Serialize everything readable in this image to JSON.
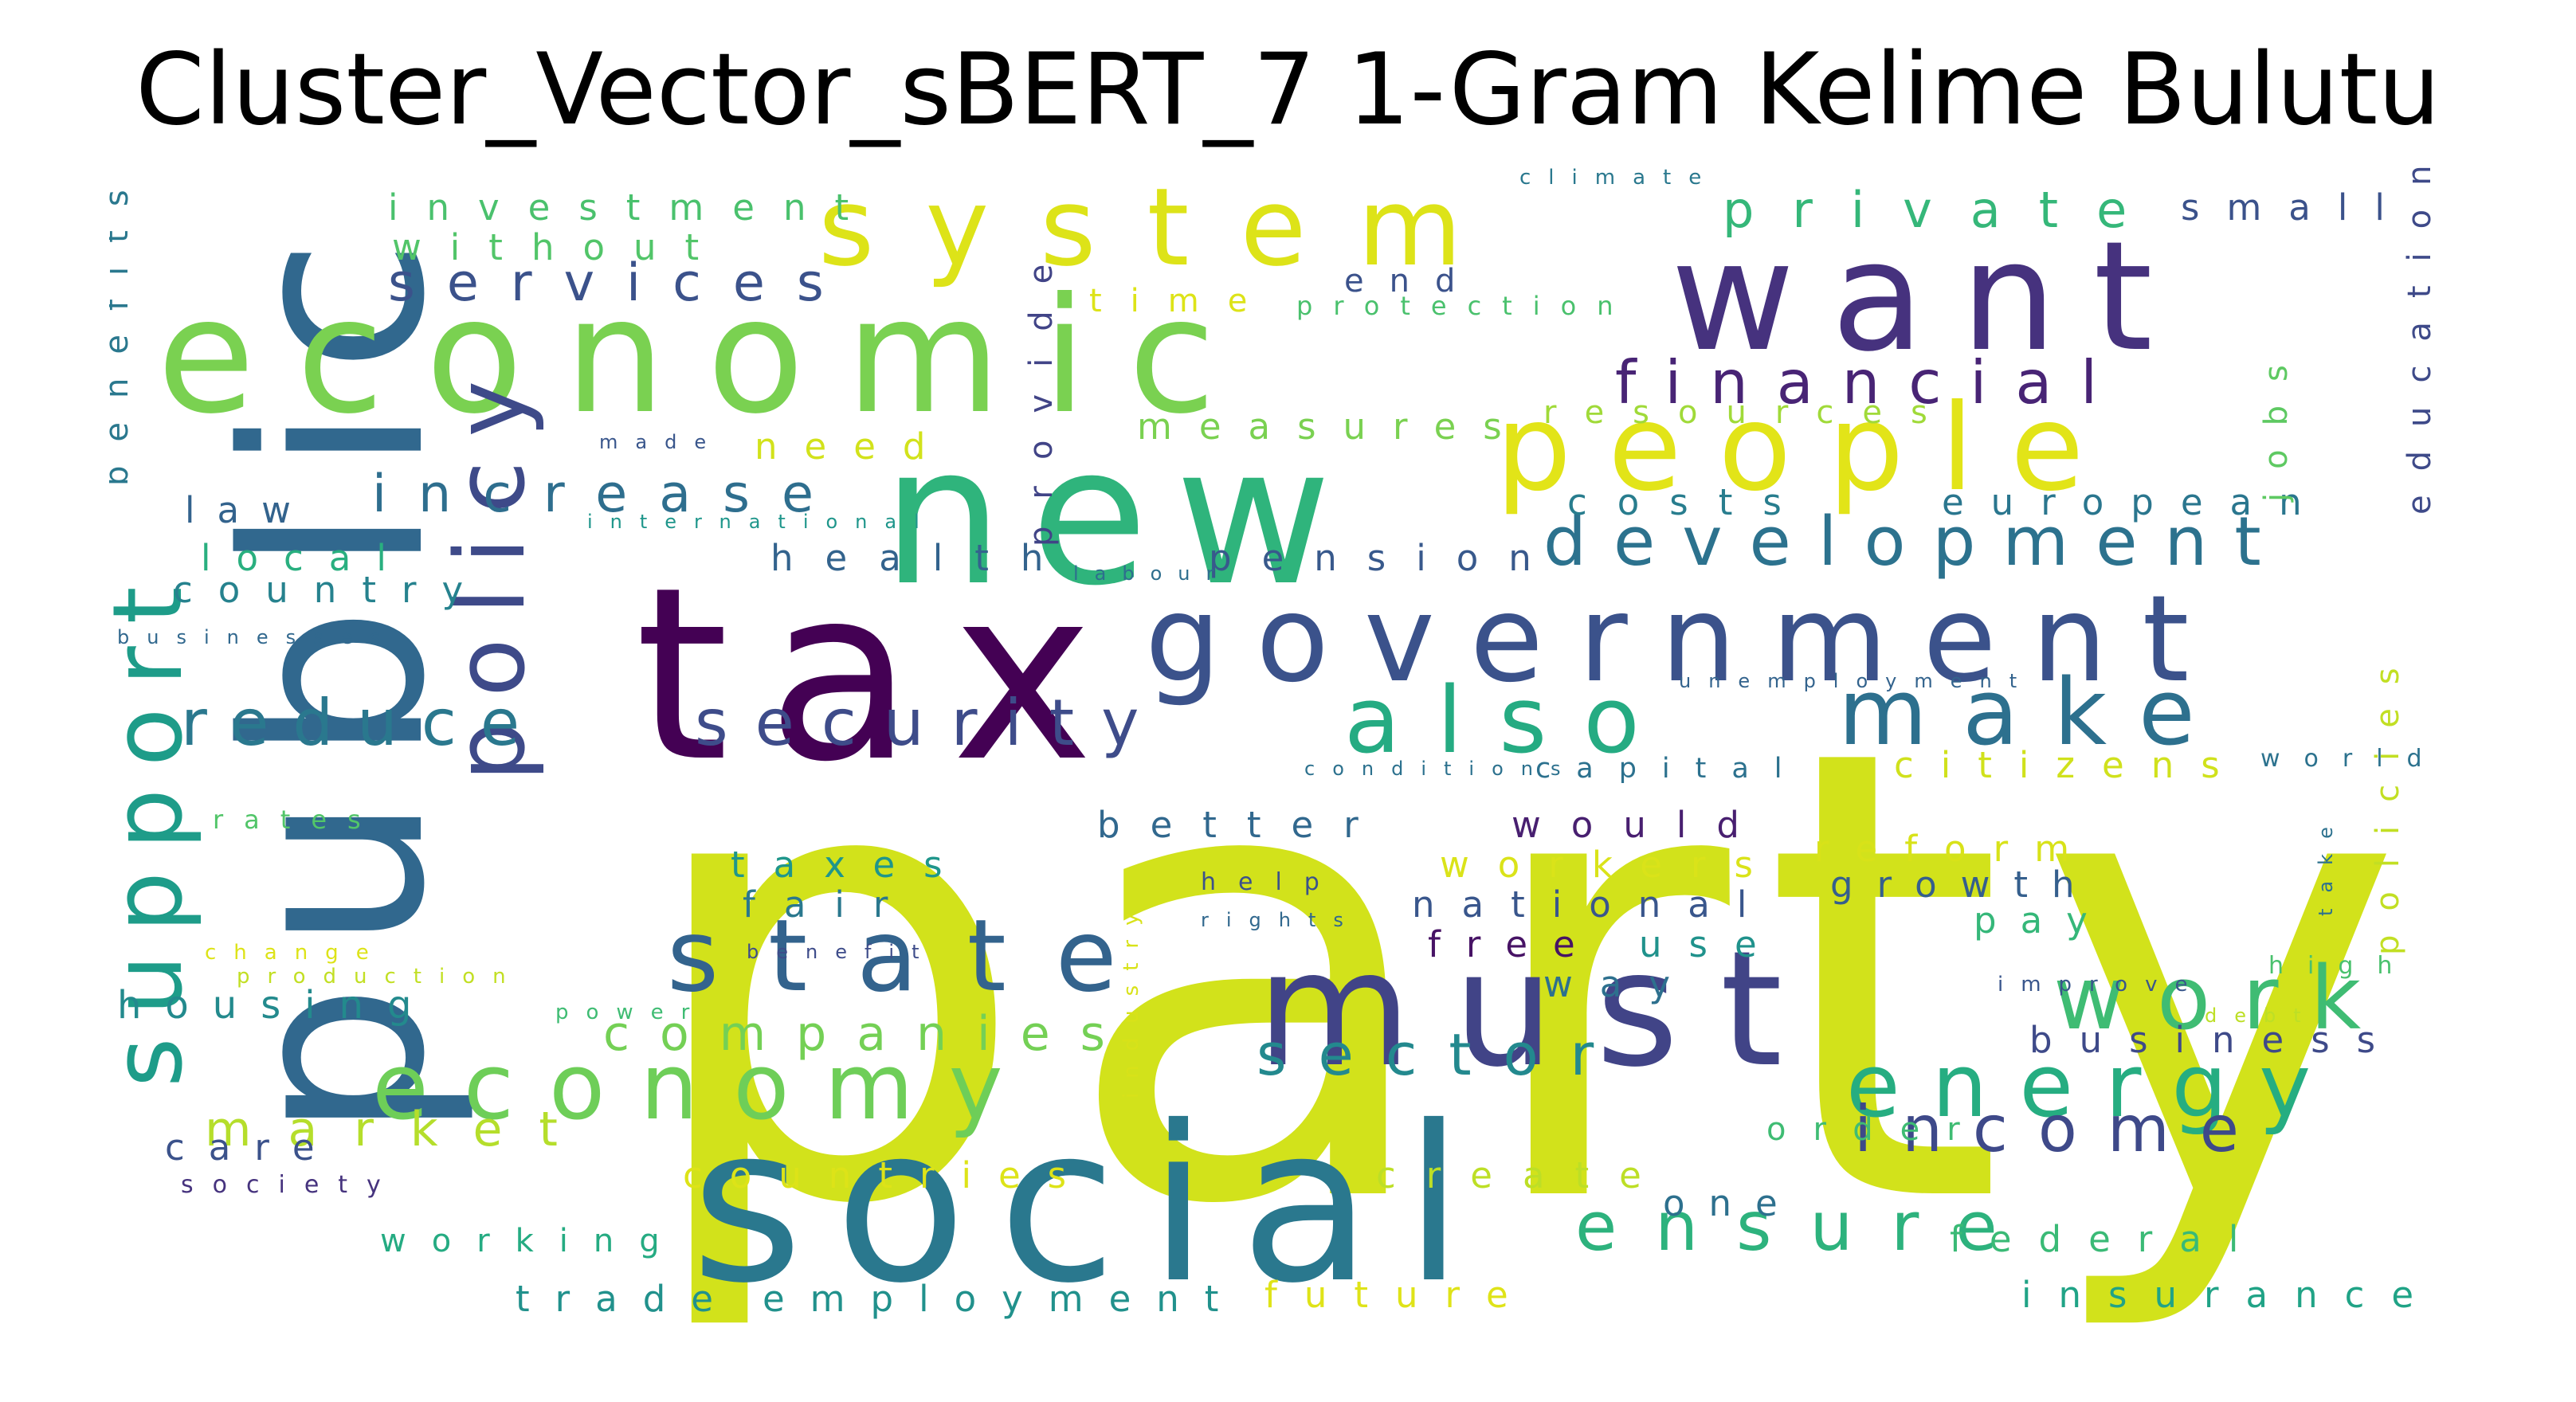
{
  "title": "Cluster_Vector_sBERT_7 1-Gram Kelime Bulutu",
  "word_cloud": {
    "background": "#ffffff",
    "colormap": "viridis",
    "words": [
      {
        "text": "party",
        "color": "#d2e21b"
      },
      {
        "text": "tax",
        "color": "#440154"
      },
      {
        "text": "public",
        "color": "#31688e"
      },
      {
        "text": "social",
        "color": "#2a788e"
      },
      {
        "text": "economic",
        "color": "#7ad151"
      },
      {
        "text": "new",
        "color": "#2fb47c"
      },
      {
        "text": "want",
        "color": "#46327e"
      },
      {
        "text": "must",
        "color": "#414487"
      },
      {
        "text": "government",
        "color": "#3b528b"
      },
      {
        "text": "people",
        "color": "#e2e418"
      },
      {
        "text": "support",
        "color": "#1e9c89"
      },
      {
        "text": "system",
        "color": "#dde318"
      },
      {
        "text": "policy",
        "color": "#3e4a89"
      },
      {
        "text": "state",
        "color": "#33638d"
      },
      {
        "text": "economy",
        "color": "#6ece58"
      },
      {
        "text": "also",
        "color": "#25ab82"
      },
      {
        "text": "make",
        "color": "#2d708e"
      },
      {
        "text": "energy",
        "color": "#26ad81"
      },
      {
        "text": "work",
        "color": "#3fbc73"
      },
      {
        "text": "development",
        "color": "#2c728e"
      },
      {
        "text": "ensure",
        "color": "#2db27d"
      },
      {
        "text": "security",
        "color": "#3e4c8a"
      },
      {
        "text": "reduce",
        "color": "#2a788e"
      },
      {
        "text": "financial",
        "color": "#482475"
      },
      {
        "text": "income",
        "color": "#3e4989"
      },
      {
        "text": "sector",
        "color": "#23898e"
      },
      {
        "text": "increase",
        "color": "#2e6e8e"
      },
      {
        "text": "services",
        "color": "#3b528b"
      },
      {
        "text": "private",
        "color": "#35b779"
      },
      {
        "text": "companies",
        "color": "#74d055"
      },
      {
        "text": "market",
        "color": "#b5de2b"
      },
      {
        "text": "investment",
        "color": "#4ac16d"
      },
      {
        "text": "without",
        "color": "#52c569"
      },
      {
        "text": "housing",
        "color": "#238a8d"
      },
      {
        "text": "health",
        "color": "#33638d"
      },
      {
        "text": "country",
        "color": "#26828e"
      },
      {
        "text": "local",
        "color": "#29af7f"
      },
      {
        "text": "law",
        "color": "#33638d"
      },
      {
        "text": "pension",
        "color": "#38598c"
      },
      {
        "text": "costs",
        "color": "#287d8e"
      },
      {
        "text": "european",
        "color": "#2a768e"
      },
      {
        "text": "better",
        "color": "#31688e"
      },
      {
        "text": "would",
        "color": "#481f70"
      },
      {
        "text": "taxes",
        "color": "#1f968b"
      },
      {
        "text": "fair",
        "color": "#2a788e"
      },
      {
        "text": "national",
        "color": "#39568c"
      },
      {
        "text": "free",
        "color": "#471365"
      },
      {
        "text": "use",
        "color": "#20928c"
      },
      {
        "text": "growth",
        "color": "#355f8d"
      },
      {
        "text": "business",
        "color": "#3e4a89"
      },
      {
        "text": "reform",
        "color": "#d8e219"
      },
      {
        "text": "workers",
        "color": "#dae319"
      },
      {
        "text": "citizens",
        "color": "#d0e11c"
      },
      {
        "text": "capital",
        "color": "#2c718e"
      },
      {
        "text": "countries",
        "color": "#dde318"
      },
      {
        "text": "create",
        "color": "#bddf26"
      },
      {
        "text": "federal",
        "color": "#3aba76"
      },
      {
        "text": "insurance",
        "color": "#20a386"
      },
      {
        "text": "future",
        "color": "#dfe318"
      },
      {
        "text": "employment",
        "color": "#21918c"
      },
      {
        "text": "trade",
        "color": "#21918c"
      },
      {
        "text": "working",
        "color": "#25ab82"
      },
      {
        "text": "care",
        "color": "#3b528b"
      },
      {
        "text": "order",
        "color": "#3fbc73"
      },
      {
        "text": "one",
        "color": "#2d708e"
      },
      {
        "text": "way",
        "color": "#2d708e"
      },
      {
        "text": "pay",
        "color": "#35b779"
      },
      {
        "text": "measures",
        "color": "#7ad151"
      },
      {
        "text": "resources",
        "color": "#a0da39"
      },
      {
        "text": "need",
        "color": "#d2e21b"
      },
      {
        "text": "time",
        "color": "#dde318"
      },
      {
        "text": "end",
        "color": "#3b528b"
      },
      {
        "text": "provide",
        "color": "#414487"
      },
      {
        "text": "jobs",
        "color": "#5ec962"
      },
      {
        "text": "education",
        "color": "#3e4a89"
      },
      {
        "text": "policies",
        "color": "#c2df23"
      },
      {
        "text": "benefits",
        "color": "#2a788e"
      },
      {
        "text": "small",
        "color": "#3b528b"
      },
      {
        "text": "world",
        "color": "#2c728e"
      },
      {
        "text": "high",
        "color": "#4ac16d"
      },
      {
        "text": "rates",
        "color": "#52c569"
      },
      {
        "text": "protection",
        "color": "#4ac16d"
      },
      {
        "text": "climate",
        "color": "#2a788e"
      },
      {
        "text": "made",
        "color": "#39568c"
      },
      {
        "text": "international",
        "color": "#1f968b"
      },
      {
        "text": "labour",
        "color": "#2e6e8e"
      },
      {
        "text": "businesses",
        "color": "#31688e"
      },
      {
        "text": "unemployment",
        "color": "#33638d"
      },
      {
        "text": "conditions",
        "color": "#2c718e"
      },
      {
        "text": "help",
        "color": "#3b528b"
      },
      {
        "text": "rights",
        "color": "#31688e"
      },
      {
        "text": "benefit",
        "color": "#3e4c8a"
      },
      {
        "text": "industry",
        "color": "#d8e219"
      },
      {
        "text": "change",
        "color": "#dde318"
      },
      {
        "text": "production",
        "color": "#c2df23"
      },
      {
        "text": "power",
        "color": "#3fbc73"
      },
      {
        "text": "society",
        "color": "#46337e"
      },
      {
        "text": "improve",
        "color": "#39568c"
      },
      {
        "text": "debt",
        "color": "#bddf26"
      },
      {
        "text": "take",
        "color": "#2c718e"
      }
    ]
  }
}
